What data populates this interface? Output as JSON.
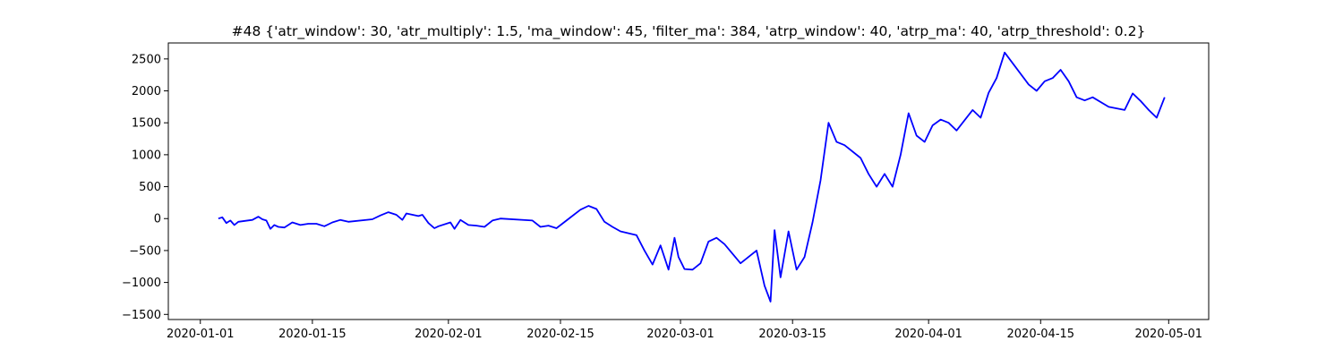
{
  "chart_data": {
    "type": "line",
    "title": "#48 {'atr_window': 30, 'atr_multiply': 1.5, 'ma_window': 45, 'filter_ma': 384, 'atrp_window': 40, 'atrp_ma': 40, 'atrp_threshold': 0.2}",
    "xlabel": "",
    "ylabel": "",
    "grid": false,
    "legend": "none",
    "line_color": "#0000ff",
    "xlim": [
      "2019-12-28",
      "2020-05-06"
    ],
    "ylim": [
      -1580,
      2750
    ],
    "x_ticks": [
      "2020-01-01",
      "2020-01-15",
      "2020-02-01",
      "2020-02-15",
      "2020-03-01",
      "2020-03-15",
      "2020-04-01",
      "2020-04-15",
      "2020-05-01"
    ],
    "y_ticks": [
      -1500,
      -1000,
      -500,
      0,
      500,
      1000,
      1500,
      2000,
      2500
    ],
    "series": [
      {
        "x": [
          "2020-01-03",
          "2020-01-03",
          "2020-01-04",
          "2020-01-04",
          "2020-01-05",
          "2020-01-05",
          "2020-01-07",
          "2020-01-08",
          "2020-01-08",
          "2020-01-09",
          "2020-01-09",
          "2020-01-10",
          "2020-01-10",
          "2020-01-11",
          "2020-01-12",
          "2020-01-13",
          "2020-01-14",
          "2020-01-15",
          "2020-01-16",
          "2020-01-17",
          "2020-01-18",
          "2020-01-19",
          "2020-01-22",
          "2020-01-23",
          "2020-01-24",
          "2020-01-25",
          "2020-01-26",
          "2020-01-26",
          "2020-01-28",
          "2020-01-28",
          "2020-01-29",
          "2020-01-30",
          "2020-01-30",
          "2020-02-01",
          "2020-02-01",
          "2020-02-02",
          "2020-02-03",
          "2020-02-04",
          "2020-02-05",
          "2020-02-06",
          "2020-02-07",
          "2020-02-11",
          "2020-02-12",
          "2020-02-13",
          "2020-02-14",
          "2020-02-17",
          "2020-02-18",
          "2020-02-19",
          "2020-02-20",
          "2020-02-21",
          "2020-02-22",
          "2020-02-24",
          "2020-02-25",
          "2020-02-26",
          "2020-02-27",
          "2020-02-28",
          "2020-02-29",
          "2020-02-29",
          "2020-03-01",
          "2020-03-02",
          "2020-03-03",
          "2020-03-04",
          "2020-03-05",
          "2020-03-06",
          "2020-03-08",
          "2020-03-10",
          "2020-03-11",
          "2020-03-12",
          "2020-03-12",
          "2020-03-13",
          "2020-03-14",
          "2020-03-15",
          "2020-03-16",
          "2020-03-17",
          "2020-03-18",
          "2020-03-19",
          "2020-03-20",
          "2020-03-21",
          "2020-03-23",
          "2020-03-24",
          "2020-03-25",
          "2020-03-26",
          "2020-03-27",
          "2020-03-28",
          "2020-03-29",
          "2020-03-30",
          "2020-03-31",
          "2020-04-01",
          "2020-04-02",
          "2020-04-03",
          "2020-04-04",
          "2020-04-06",
          "2020-04-07",
          "2020-04-08",
          "2020-04-09",
          "2020-04-10",
          "2020-04-13",
          "2020-04-14",
          "2020-04-15",
          "2020-04-16",
          "2020-04-17",
          "2020-04-18",
          "2020-04-19",
          "2020-04-20",
          "2020-04-21",
          "2020-04-23",
          "2020-04-25",
          "2020-04-26",
          "2020-04-27",
          "2020-04-28",
          "2020-04-29",
          "2020-04-30"
        ],
        "y": [
          0,
          20,
          -70,
          -30,
          -100,
          -50,
          -20,
          30,
          -10,
          -30,
          -160,
          -100,
          -130,
          -140,
          -60,
          -100,
          -80,
          -80,
          -120,
          -60,
          -20,
          -50,
          -10,
          50,
          100,
          60,
          -20,
          80,
          40,
          60,
          -70,
          -150,
          -120,
          -60,
          -160,
          -20,
          -100,
          -110,
          -130,
          -30,
          0,
          -30,
          -130,
          -110,
          -150,
          140,
          200,
          150,
          -50,
          -130,
          -200,
          -260,
          -500,
          -720,
          -420,
          -800,
          -300,
          -600,
          -790,
          -800,
          -700,
          -360,
          -300,
          -400,
          -700,
          -500,
          -1050,
          -1300,
          -180,
          -920,
          -200,
          -800,
          -600,
          -60,
          600,
          1500,
          1200,
          1150,
          950,
          700,
          500,
          700,
          500,
          1000,
          1650,
          1300,
          1200,
          1460,
          1550,
          1500,
          1380,
          1700,
          1580,
          1970,
          2200,
          2600,
          2100,
          2000,
          2150,
          2200,
          2330,
          2150,
          1900,
          1850,
          1900,
          1750,
          1700,
          1960,
          1840,
          1700,
          1580,
          1900
        ]
      }
    ]
  }
}
